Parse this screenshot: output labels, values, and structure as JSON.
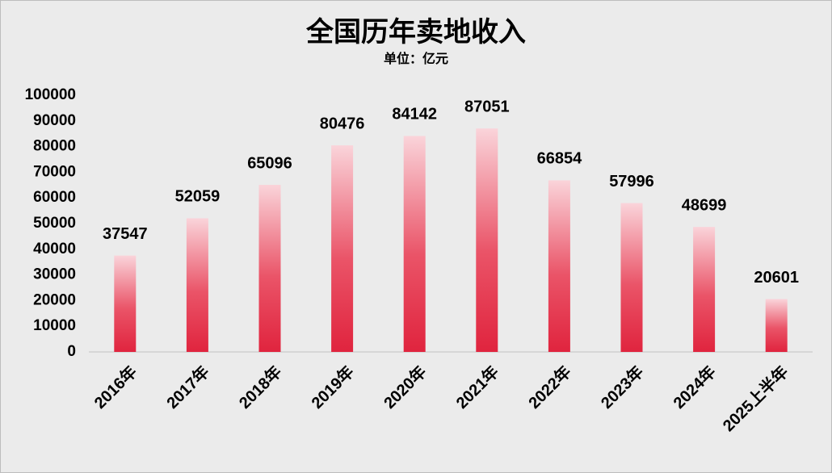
{
  "chart_data": {
    "type": "bar",
    "title": "全国历年卖地收入",
    "subtitle": "单位：亿元",
    "categories": [
      "2016年",
      "2017年",
      "2018年",
      "2019年",
      "2020年",
      "2021年",
      "2022年",
      "2023年",
      "2024年",
      "2025上半年"
    ],
    "values": [
      37547,
      52059,
      65096,
      80476,
      84142,
      87051,
      66854,
      57996,
      48699,
      20601
    ],
    "color": "#e0243e",
    "ylim": [
      0,
      100000
    ],
    "yticks": [
      0,
      10000,
      20000,
      30000,
      40000,
      50000,
      60000,
      70000,
      80000,
      90000,
      100000
    ],
    "grid": false
  }
}
